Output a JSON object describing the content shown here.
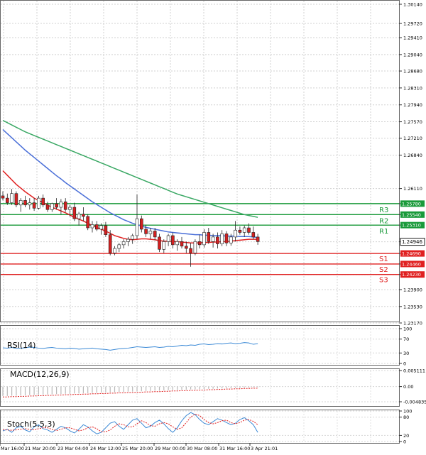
{
  "chart_data": [
    {
      "type": "candlestick",
      "panel": "price",
      "y_ticks": [
        "1.30140",
        "1.29720",
        "1.29410",
        "1.29040",
        "1.28680",
        "1.28310",
        "1.27940",
        "1.27570",
        "1.27210",
        "1.26840",
        "1.26110",
        "1.25780",
        "1.25540",
        "1.25310",
        "1.24946",
        "1.24690",
        "1.24460",
        "1.24230",
        "1.23900",
        "1.23530",
        "1.23170"
      ],
      "ylim": [
        1.2317,
        1.3014
      ],
      "x_ticks": [
        "Mar 16:00",
        "21 Mar 20:00",
        "23 Mar 04:00",
        "24 Mar 12:00",
        "25 Mar 20:00",
        "29 Mar 00:00",
        "30 Mar 08:00",
        "31 Mar 16:00",
        "3 Apr 21:01"
      ],
      "levels": [
        {
          "name": "R3",
          "value": 1.2578,
          "value_label": "1.25780",
          "color": "#1a9a3a"
        },
        {
          "name": "R2",
          "value": 1.2554,
          "value_label": "1.25540",
          "color": "#1a9a3a"
        },
        {
          "name": "R1",
          "value": 1.2531,
          "value_label": "1.25310",
          "color": "#1a9a3a"
        },
        {
          "name": "S1",
          "value": 1.2469,
          "value_label": "1.24690",
          "color": "#e02020"
        },
        {
          "name": "S2",
          "value": 1.2446,
          "value_label": "1.24460",
          "color": "#e02020"
        },
        {
          "name": "S3",
          "value": 1.2423,
          "value_label": "1.24230",
          "color": "#e02020"
        }
      ],
      "current_price": {
        "value": 1.24946,
        "label": "1.24946"
      },
      "candles": [
        {
          "o": 1.2595,
          "h": 1.2605,
          "l": 1.2585,
          "c": 1.259
        },
        {
          "o": 1.259,
          "h": 1.26,
          "l": 1.2575,
          "c": 1.258
        },
        {
          "o": 1.258,
          "h": 1.261,
          "l": 1.2575,
          "c": 1.26
        },
        {
          "o": 1.26,
          "h": 1.2605,
          "l": 1.257,
          "c": 1.2575
        },
        {
          "o": 1.2575,
          "h": 1.259,
          "l": 1.256,
          "c": 1.2585
        },
        {
          "o": 1.2585,
          "h": 1.2595,
          "l": 1.257,
          "c": 1.2575
        },
        {
          "o": 1.2575,
          "h": 1.259,
          "l": 1.2565,
          "c": 1.258
        },
        {
          "o": 1.258,
          "h": 1.259,
          "l": 1.2562,
          "c": 1.2568
        },
        {
          "o": 1.2568,
          "h": 1.2595,
          "l": 1.2565,
          "c": 1.259
        },
        {
          "o": 1.259,
          "h": 1.2598,
          "l": 1.257,
          "c": 1.2575
        },
        {
          "o": 1.2575,
          "h": 1.2582,
          "l": 1.256,
          "c": 1.2565
        },
        {
          "o": 1.2565,
          "h": 1.258,
          "l": 1.256,
          "c": 1.2578
        },
        {
          "o": 1.2578,
          "h": 1.259,
          "l": 1.2565,
          "c": 1.257
        },
        {
          "o": 1.257,
          "h": 1.2588,
          "l": 1.2555,
          "c": 1.2582
        },
        {
          "o": 1.2582,
          "h": 1.259,
          "l": 1.256,
          "c": 1.2565
        },
        {
          "o": 1.2565,
          "h": 1.2575,
          "l": 1.255,
          "c": 1.257
        },
        {
          "o": 1.257,
          "h": 1.258,
          "l": 1.254,
          "c": 1.2545
        },
        {
          "o": 1.2545,
          "h": 1.256,
          "l": 1.253,
          "c": 1.2555
        },
        {
          "o": 1.2555,
          "h": 1.257,
          "l": 1.254,
          "c": 1.255
        },
        {
          "o": 1.255,
          "h": 1.2555,
          "l": 1.252,
          "c": 1.2525
        },
        {
          "o": 1.2525,
          "h": 1.254,
          "l": 1.2515,
          "c": 1.2532
        },
        {
          "o": 1.2532,
          "h": 1.254,
          "l": 1.2518,
          "c": 1.2522
        },
        {
          "o": 1.2522,
          "h": 1.2535,
          "l": 1.251,
          "c": 1.253
        },
        {
          "o": 1.253,
          "h": 1.2538,
          "l": 1.2505,
          "c": 1.251
        },
        {
          "o": 1.251,
          "h": 1.252,
          "l": 1.2465,
          "c": 1.247
        },
        {
          "o": 1.247,
          "h": 1.2485,
          "l": 1.2465,
          "c": 1.248
        },
        {
          "o": 1.248,
          "h": 1.2492,
          "l": 1.2472,
          "c": 1.2488
        },
        {
          "o": 1.2488,
          "h": 1.25,
          "l": 1.248,
          "c": 1.2495
        },
        {
          "o": 1.2495,
          "h": 1.2505,
          "l": 1.2485,
          "c": 1.25
        },
        {
          "o": 1.25,
          "h": 1.2512,
          "l": 1.249,
          "c": 1.2508
        },
        {
          "o": 1.2508,
          "h": 1.2598,
          "l": 1.25,
          "c": 1.2545
        },
        {
          "o": 1.2545,
          "h": 1.2552,
          "l": 1.2515,
          "c": 1.2522
        },
        {
          "o": 1.2522,
          "h": 1.2532,
          "l": 1.2505,
          "c": 1.2512
        },
        {
          "o": 1.2512,
          "h": 1.2525,
          "l": 1.25,
          "c": 1.2518
        },
        {
          "o": 1.2518,
          "h": 1.2525,
          "l": 1.2498,
          "c": 1.2505
        },
        {
          "o": 1.2505,
          "h": 1.2512,
          "l": 1.2472,
          "c": 1.2478
        },
        {
          "o": 1.2478,
          "h": 1.25,
          "l": 1.247,
          "c": 1.2495
        },
        {
          "o": 1.2495,
          "h": 1.2512,
          "l": 1.2485,
          "c": 1.2508
        },
        {
          "o": 1.2508,
          "h": 1.2515,
          "l": 1.248,
          "c": 1.2488
        },
        {
          "o": 1.2488,
          "h": 1.25,
          "l": 1.2475,
          "c": 1.2495
        },
        {
          "o": 1.2495,
          "h": 1.2505,
          "l": 1.248,
          "c": 1.2485
        },
        {
          "o": 1.2485,
          "h": 1.2495,
          "l": 1.247,
          "c": 1.248
        },
        {
          "o": 1.248,
          "h": 1.2492,
          "l": 1.244,
          "c": 1.247
        },
        {
          "o": 1.247,
          "h": 1.25,
          "l": 1.2465,
          "c": 1.2495
        },
        {
          "o": 1.2495,
          "h": 1.251,
          "l": 1.248,
          "c": 1.2488
        },
        {
          "o": 1.2488,
          "h": 1.2522,
          "l": 1.2482,
          "c": 1.2515
        },
        {
          "o": 1.2515,
          "h": 1.2525,
          "l": 1.249,
          "c": 1.2495
        },
        {
          "o": 1.2495,
          "h": 1.2512,
          "l": 1.2482,
          "c": 1.2505
        },
        {
          "o": 1.2505,
          "h": 1.2515,
          "l": 1.248,
          "c": 1.249
        },
        {
          "o": 1.249,
          "h": 1.252,
          "l": 1.2485,
          "c": 1.2512
        },
        {
          "o": 1.2512,
          "h": 1.2518,
          "l": 1.2485,
          "c": 1.2492
        },
        {
          "o": 1.2492,
          "h": 1.2512,
          "l": 1.2486,
          "c": 1.2505
        },
        {
          "o": 1.2505,
          "h": 1.254,
          "l": 1.2495,
          "c": 1.252
        },
        {
          "o": 1.252,
          "h": 1.2528,
          "l": 1.251,
          "c": 1.2515
        },
        {
          "o": 1.2515,
          "h": 1.253,
          "l": 1.2505,
          "c": 1.2525
        },
        {
          "o": 1.2525,
          "h": 1.2535,
          "l": 1.251,
          "c": 1.2515
        },
        {
          "o": 1.2515,
          "h": 1.2528,
          "l": 1.25,
          "c": 1.2505
        },
        {
          "o": 1.2505,
          "h": 1.2512,
          "l": 1.2488,
          "c": 1.2495
        }
      ],
      "ma_fast": [
        1.265,
        1.264,
        1.263,
        1.262,
        1.2612,
        1.2604,
        1.2597,
        1.259,
        1.2585,
        1.258,
        1.2575,
        1.257,
        1.2566,
        1.2562,
        1.2558,
        1.2553,
        1.2548,
        1.2544,
        1.254,
        1.2535,
        1.253,
        1.2526,
        1.2522,
        1.2518,
        1.2513,
        1.2508,
        1.2505,
        1.2502,
        1.25,
        1.2499,
        1.25,
        1.2501,
        1.2501,
        1.25,
        1.2499,
        1.2497,
        1.2496,
        1.2496,
        1.2495,
        1.2495,
        1.2494,
        1.2493,
        1.2492,
        1.2492,
        1.2492,
        1.2493,
        1.2493,
        1.2494,
        1.2494,
        1.2495,
        1.2495,
        1.2496,
        1.2497,
        1.2498,
        1.2499,
        1.25,
        1.25,
        1.25
      ],
      "ma_mid": [
        1.274,
        1.2731,
        1.2722,
        1.2713,
        1.2704,
        1.2695,
        1.2687,
        1.2679,
        1.2671,
        1.2663,
        1.2655,
        1.2647,
        1.2639,
        1.2632,
        1.2624,
        1.2617,
        1.261,
        1.2603,
        1.2596,
        1.2589,
        1.2582,
        1.2576,
        1.257,
        1.2564,
        1.2558,
        1.2553,
        1.2548,
        1.2543,
        1.2539,
        1.2535,
        1.2532,
        1.2529,
        1.2526,
        1.2524,
        1.2522,
        1.252,
        1.2518,
        1.2516,
        1.2515,
        1.2514,
        1.2513,
        1.2512,
        1.2511,
        1.251,
        1.251,
        1.2509,
        1.2509,
        1.2508,
        1.2508,
        1.2508,
        1.2507,
        1.2507,
        1.2507,
        1.2506,
        1.2506,
        1.2506,
        1.2505,
        1.2504
      ],
      "ma_slow": [
        1.276,
        1.2755,
        1.275,
        1.2745,
        1.274,
        1.2735,
        1.2731,
        1.2727,
        1.2723,
        1.2719,
        1.2715,
        1.2711,
        1.2707,
        1.2703,
        1.2699,
        1.2695,
        1.2691,
        1.2687,
        1.2683,
        1.2679,
        1.2675,
        1.2671,
        1.2667,
        1.2663,
        1.2659,
        1.2655,
        1.2651,
        1.2647,
        1.2643,
        1.2639,
        1.2635,
        1.2631,
        1.2627,
        1.2623,
        1.2619,
        1.2615,
        1.2611,
        1.2607,
        1.2603,
        1.2599,
        1.2596,
        1.2593,
        1.259,
        1.2587,
        1.2584,
        1.2581,
        1.2578,
        1.2575,
        1.2572,
        1.2569,
        1.2566,
        1.2563,
        1.256,
        1.2557,
        1.2554,
        1.2552,
        1.255,
        1.2548
      ],
      "colors": {
        "bull": "#2e9e3e",
        "bear": "#d42020",
        "ma_fast": "#e02020",
        "ma_mid": "#4a6fd8",
        "ma_slow": "#3aa864",
        "support": "#e02020",
        "resistance": "#1a9a3a"
      }
    },
    {
      "type": "line",
      "panel": "rsi",
      "title": "RSI(14)",
      "y_ticks": [
        "100",
        "70",
        "30",
        "0"
      ],
      "ylim": [
        0,
        100
      ],
      "values": [
        45,
        44,
        46,
        43,
        44,
        45,
        47,
        46,
        44,
        43,
        45,
        46,
        44,
        43,
        42,
        44,
        43,
        41,
        42,
        43,
        44,
        42,
        41,
        40,
        38,
        40,
        42,
        43,
        44,
        46,
        48,
        47,
        46,
        47,
        48,
        46,
        47,
        49,
        48,
        50,
        52,
        51,
        53,
        52,
        55,
        56,
        54,
        55,
        57,
        56,
        58,
        59,
        57,
        58,
        60,
        59,
        55,
        57
      ],
      "color": "#3c8ad6"
    },
    {
      "type": "bar",
      "panel": "macd",
      "title": "MACD(12,26,9)",
      "y_ticks": [
        "0.005111",
        "0.00",
        "-0.004835"
      ],
      "ylim": [
        -0.004835,
        0.005111
      ],
      "values": [
        -0.003,
        -0.003,
        -0.0029,
        -0.0029,
        -0.0028,
        -0.0028,
        -0.0027,
        -0.0027,
        -0.0026,
        -0.0026,
        -0.0025,
        -0.0025,
        -0.0024,
        -0.0024,
        -0.0023,
        -0.0023,
        -0.0022,
        -0.0022,
        -0.0021,
        -0.0021,
        -0.002,
        -0.002,
        -0.0019,
        -0.0019,
        -0.0018,
        -0.0018,
        -0.0017,
        -0.0017,
        -0.0016,
        -0.0016,
        -0.0015,
        -0.0015,
        -0.0014,
        -0.0014,
        -0.0013,
        -0.0013,
        -0.0012,
        -0.0012,
        -0.0011,
        -0.0011,
        -0.001,
        -0.001,
        -0.0009,
        -0.0009,
        -0.0008,
        -0.0008,
        -0.0007,
        -0.0007,
        -0.0006,
        -0.0006,
        -0.0005,
        -0.0005,
        -0.0004,
        -0.0004,
        -0.0003,
        -0.0003,
        -0.0002,
        -0.0002
      ],
      "signal": [
        -0.0033,
        -0.0033,
        -0.0032,
        -0.0032,
        -0.0031,
        -0.0031,
        -0.003,
        -0.003,
        -0.0029,
        -0.0029,
        -0.0028,
        -0.0028,
        -0.0027,
        -0.0027,
        -0.0026,
        -0.0026,
        -0.0025,
        -0.0025,
        -0.0024,
        -0.0024,
        -0.0023,
        -0.0023,
        -0.0022,
        -0.0022,
        -0.0021,
        -0.0021,
        -0.002,
        -0.002,
        -0.0019,
        -0.0019,
        -0.0018,
        -0.0018,
        -0.0017,
        -0.0017,
        -0.0016,
        -0.0016,
        -0.0015,
        -0.0015,
        -0.0014,
        -0.0014,
        -0.0013,
        -0.0013,
        -0.0012,
        -0.0012,
        -0.0011,
        -0.0011,
        -0.001,
        -0.001,
        -0.0009,
        -0.0009,
        -0.0008,
        -0.0008,
        -0.0007,
        -0.0007,
        -0.0006,
        -0.0006,
        -0.0005,
        -0.0005
      ],
      "color": "#b8b8b8",
      "signal_color": "#e02020"
    },
    {
      "type": "line",
      "panel": "stoch",
      "title": "Stoch(5,5,3)",
      "y_ticks": [
        "100",
        "80",
        "20",
        "0"
      ],
      "ylim": [
        0,
        100
      ],
      "k": [
        35,
        40,
        30,
        45,
        50,
        38,
        32,
        48,
        55,
        42,
        38,
        30,
        40,
        50,
        45,
        35,
        28,
        40,
        55,
        48,
        35,
        25,
        30,
        45,
        60,
        65,
        50,
        40,
        55,
        70,
        75,
        60,
        45,
        50,
        62,
        70,
        58,
        42,
        30,
        45,
        68,
        85,
        95,
        88,
        72,
        60,
        55,
        65,
        75,
        70,
        62,
        55,
        60,
        72,
        78,
        68,
        55,
        30
      ],
      "d": [
        38,
        38,
        37,
        38,
        40,
        42,
        40,
        38,
        42,
        45,
        45,
        40,
        36,
        40,
        45,
        45,
        40,
        35,
        38,
        45,
        48,
        42,
        32,
        32,
        38,
        50,
        58,
        55,
        48,
        48,
        58,
        68,
        62,
        52,
        50,
        58,
        62,
        58,
        48,
        40,
        45,
        62,
        80,
        90,
        85,
        72,
        62,
        58,
        62,
        68,
        70,
        62,
        58,
        62,
        70,
        72,
        66,
        55
      ],
      "k_color": "#3c8ad6",
      "d_color": "#e02020"
    }
  ]
}
